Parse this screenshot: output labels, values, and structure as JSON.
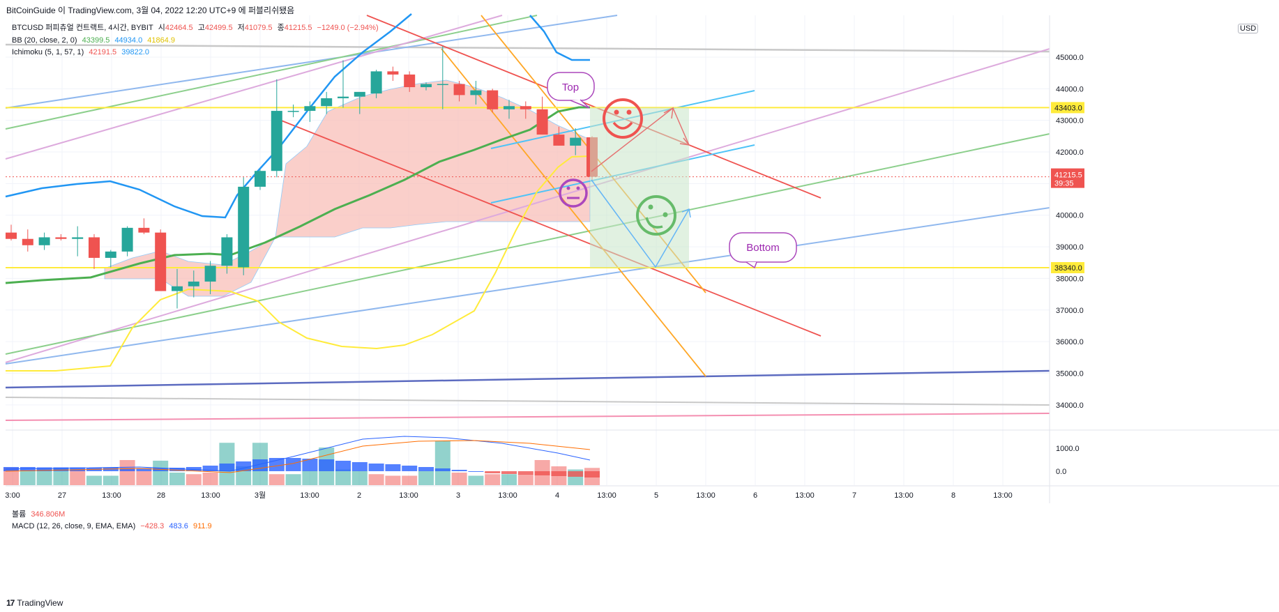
{
  "header": {
    "watermark": "BitCoinGuide 이 TradingView.com, 3월 04, 2022 12:20 UTC+9 에 퍼블리쉬됐음"
  },
  "legend": {
    "symbol": "BTCUSD 퍼피츄얼 컨트랙트, 4시간, BYBIT",
    "o_label": "시",
    "o_val": "42464.5",
    "h_label": "고",
    "h_val": "42499.5",
    "l_label": "저",
    "l_val": "41079.5",
    "c_label": "종",
    "c_val": "41215.5",
    "chg": "−1249.0 (−2.94%)",
    "bb_label": "BB (20, close, 2, 0)",
    "bb_basis": "43399.5",
    "bb_upper": "44934.0",
    "bb_lower": "41864.9",
    "ichi_label": "Ichimoku (5, 1, 57, 1)",
    "ichi_a": "42191.5",
    "ichi_b": "39822.0",
    "vol_label": "볼륨",
    "vol_val": "346.806M",
    "macd_label": "MACD (12, 26, close, 9, EMA, EMA)",
    "macd_hist": "−428.3",
    "macd_line": "483.6",
    "macd_signal": "911.9"
  },
  "currency_button": "USD",
  "annotations": {
    "top": "Top",
    "bottom": "Bottom"
  },
  "price_tags": {
    "resistance": "43403.0",
    "last": "41215.5",
    "countdown": "39:35",
    "support": "38340.0"
  },
  "footer": {
    "brand": "TradingView"
  },
  "colors": {
    "up": "#26a69a",
    "down": "#ef5350",
    "bb_basis": "#4caf50",
    "bb_upper": "#2196f3",
    "bb_lower": "#ffeb3b",
    "cloud": "#f8bbb3",
    "level": "#ffeb3b",
    "trade_box": "#c8e6c9"
  },
  "chart_data": {
    "type": "candlestick",
    "title": "BTCUSD 퍼피츄얼 컨트랙트, 4시간, BYBIT",
    "yaxis_ticks": [
      34000,
      35000,
      36000,
      37000,
      38000,
      39000,
      40000,
      41000,
      42000,
      43000,
      44000,
      45000
    ],
    "ylim": [
      33700,
      46300
    ],
    "xaxis_ticks": [
      "3:00",
      "27",
      "13:00",
      "28",
      "13:00",
      "3월",
      "13:00",
      "2",
      "13:00",
      "3",
      "13:00",
      "4",
      "13:00",
      "5",
      "13:00",
      "6",
      "13:00",
      "7",
      "13:00",
      "8",
      "13:00"
    ],
    "candles": [
      {
        "o": 39450,
        "h": 39700,
        "l": 39200,
        "c": 39250
      },
      {
        "o": 39250,
        "h": 39550,
        "l": 38850,
        "c": 39050
      },
      {
        "o": 39050,
        "h": 39450,
        "l": 38900,
        "c": 39300
      },
      {
        "o": 39300,
        "h": 39400,
        "l": 39200,
        "c": 39250
      },
      {
        "o": 39250,
        "h": 39650,
        "l": 38700,
        "c": 39300
      },
      {
        "o": 39300,
        "h": 39400,
        "l": 38300,
        "c": 38650
      },
      {
        "o": 38650,
        "h": 38900,
        "l": 38350,
        "c": 38850
      },
      {
        "o": 38850,
        "h": 39650,
        "l": 38700,
        "c": 39600
      },
      {
        "o": 39600,
        "h": 39900,
        "l": 39400,
        "c": 39450
      },
      {
        "o": 39450,
        "h": 39550,
        "l": 37650,
        "c": 37600
      },
      {
        "o": 37600,
        "h": 38300,
        "l": 37050,
        "c": 37750
      },
      {
        "o": 37750,
        "h": 38250,
        "l": 37400,
        "c": 37900
      },
      {
        "o": 37900,
        "h": 38550,
        "l": 37500,
        "c": 38400
      },
      {
        "o": 38400,
        "h": 39400,
        "l": 38150,
        "c": 39300
      },
      {
        "o": 38350,
        "h": 41200,
        "l": 38100,
        "c": 40900
      },
      {
        "o": 40900,
        "h": 41450,
        "l": 40800,
        "c": 41400
      },
      {
        "o": 41400,
        "h": 44300,
        "l": 41200,
        "c": 43300
      },
      {
        "o": 43300,
        "h": 43500,
        "l": 43100,
        "c": 43300
      },
      {
        "o": 43300,
        "h": 43600,
        "l": 42950,
        "c": 43450
      },
      {
        "o": 43450,
        "h": 43900,
        "l": 43200,
        "c": 43700
      },
      {
        "o": 43700,
        "h": 44900,
        "l": 43400,
        "c": 43750
      },
      {
        "o": 43750,
        "h": 43850,
        "l": 43200,
        "c": 43900
      },
      {
        "o": 43850,
        "h": 44600,
        "l": 43700,
        "c": 44550
      },
      {
        "o": 44550,
        "h": 44700,
        "l": 44250,
        "c": 44450
      },
      {
        "o": 44450,
        "h": 44550,
        "l": 43900,
        "c": 44050
      },
      {
        "o": 44050,
        "h": 44200,
        "l": 43950,
        "c": 44150
      },
      {
        "o": 44150,
        "h": 45350,
        "l": 43350,
        "c": 44150
      },
      {
        "o": 44150,
        "h": 44250,
        "l": 43600,
        "c": 43800
      },
      {
        "o": 43800,
        "h": 44250,
        "l": 43500,
        "c": 43950
      },
      {
        "o": 43950,
        "h": 44000,
        "l": 43250,
        "c": 43350
      },
      {
        "o": 43350,
        "h": 43650,
        "l": 43050,
        "c": 43450
      },
      {
        "o": 43450,
        "h": 43600,
        "l": 43050,
        "c": 43350
      },
      {
        "o": 43350,
        "h": 43750,
        "l": 42550,
        "c": 42550
      },
      {
        "o": 42550,
        "h": 42800,
        "l": 42200,
        "c": 42200
      },
      {
        "o": 42200,
        "h": 42750,
        "l": 41900,
        "c": 42450
      },
      {
        "o": 42464.5,
        "h": 42499.5,
        "l": 41079.5,
        "c": 41215.5
      }
    ],
    "horizontal_levels": [
      43403.0,
      38340.0
    ],
    "volume": [
      {
        "v": 0.55,
        "up": false
      },
      {
        "v": 0.45,
        "up": true
      },
      {
        "v": 0.5,
        "up": true
      },
      {
        "v": 0.55,
        "up": true
      },
      {
        "v": 0.5,
        "up": false
      },
      {
        "v": 0.3,
        "up": true
      },
      {
        "v": 0.3,
        "up": true
      },
      {
        "v": 0.8,
        "up": false
      },
      {
        "v": 0.45,
        "up": false
      },
      {
        "v": 0.78,
        "up": true
      },
      {
        "v": 0.4,
        "up": true
      },
      {
        "v": 0.35,
        "up": false
      },
      {
        "v": 0.4,
        "up": false
      },
      {
        "v": 1.35,
        "up": true
      },
      {
        "v": 0.6,
        "up": true
      },
      {
        "v": 1.35,
        "up": true
      },
      {
        "v": 0.35,
        "up": false
      },
      {
        "v": 0.35,
        "up": true
      },
      {
        "v": 0.45,
        "up": true
      },
      {
        "v": 1.2,
        "up": true
      },
      {
        "v": 0.5,
        "up": true
      },
      {
        "v": 0.45,
        "up": true
      },
      {
        "v": 0.35,
        "up": false
      },
      {
        "v": 0.3,
        "up": false
      },
      {
        "v": 0.3,
        "up": false
      },
      {
        "v": 0.45,
        "up": true
      },
      {
        "v": 1.4,
        "up": true
      },
      {
        "v": 0.4,
        "up": false
      },
      {
        "v": 0.3,
        "up": true
      },
      {
        "v": 0.35,
        "up": false
      },
      {
        "v": 0.35,
        "up": true
      },
      {
        "v": 0.35,
        "up": false
      },
      {
        "v": 0.8,
        "up": false
      },
      {
        "v": 0.6,
        "up": false
      },
      {
        "v": 0.5,
        "up": true
      },
      {
        "v": 0.55,
        "up": false
      }
    ],
    "macd_axis_ticks": [
      0.0,
      1000.0
    ]
  }
}
